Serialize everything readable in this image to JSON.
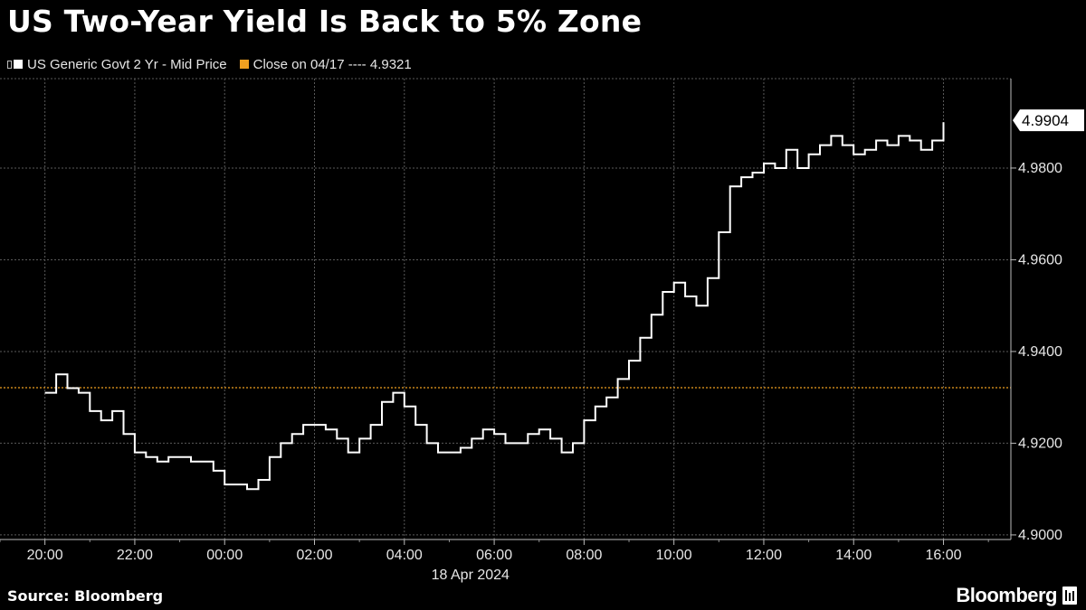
{
  "title": "US Two-Year Yield Is Back to 5% Zone",
  "legend": [
    {
      "label": "US Generic Govt 2 Yr - Mid Price",
      "color": "#ffffff"
    },
    {
      "label": "Close on 04/17 ---- 4.9321",
      "color": "#f0a020"
    }
  ],
  "footer": {
    "source": "Source: Bloomberg",
    "brand": "Bloomberg"
  },
  "colors": {
    "background": "#000000",
    "series": "#ffffff",
    "reference": "#f0a020",
    "grid": "#555555"
  },
  "chart_data": {
    "type": "line",
    "title": "US Two-Year Yield Is Back to 5% Zone",
    "xlabel": "18 Apr 2024",
    "ylabel": "",
    "x_tick_labels": [
      "20:00",
      "22:00",
      "00:00",
      "02:00",
      "04:00",
      "06:00",
      "08:00",
      "10:00",
      "12:00",
      "14:00",
      "16:00"
    ],
    "x_tick_hours": [
      20,
      22,
      24,
      26,
      28,
      30,
      32,
      34,
      36,
      38,
      40
    ],
    "x_range_hours": [
      19.0,
      41.5
    ],
    "y_tick_labels": [
      "4.9000",
      "4.9200",
      "4.9400",
      "4.9600",
      "4.9800"
    ],
    "y_ticks": [
      4.9,
      4.92,
      4.94,
      4.96,
      4.98
    ],
    "ylim": [
      4.899,
      4.9995
    ],
    "reference_line": {
      "label": "Close on 04/17",
      "value": 4.9321
    },
    "last_value": {
      "label": "4.9904",
      "value": 4.9904
    },
    "grid": true,
    "legend_position": "top-left",
    "series": [
      {
        "name": "US Generic Govt 2 Yr - Mid Price",
        "x_hours": [
          20.0,
          20.25,
          20.5,
          20.75,
          21.0,
          21.25,
          21.5,
          21.75,
          22.0,
          22.25,
          22.5,
          22.75,
          23.0,
          23.25,
          23.5,
          23.75,
          24.0,
          24.25,
          24.5,
          24.75,
          25.0,
          25.25,
          25.5,
          25.75,
          26.0,
          26.25,
          26.5,
          26.75,
          27.0,
          27.25,
          27.5,
          27.75,
          28.0,
          28.25,
          28.5,
          28.75,
          29.0,
          29.25,
          29.5,
          29.75,
          30.0,
          30.25,
          30.5,
          30.75,
          31.0,
          31.25,
          31.5,
          31.75,
          32.0,
          32.25,
          32.5,
          32.75,
          33.0,
          33.25,
          33.5,
          33.75,
          34.0,
          34.25,
          34.5,
          34.75,
          35.0,
          35.25,
          35.5,
          35.75,
          36.0,
          36.25,
          36.5,
          36.75,
          37.0,
          37.25,
          37.5,
          37.75,
          38.0,
          38.25,
          38.5,
          38.75,
          39.0,
          39.25,
          39.5,
          39.75,
          40.0
        ],
        "values": [
          4.931,
          4.935,
          4.932,
          4.931,
          4.927,
          4.925,
          4.927,
          4.922,
          4.918,
          4.917,
          4.916,
          4.917,
          4.917,
          4.916,
          4.916,
          4.914,
          4.911,
          4.911,
          4.91,
          4.912,
          4.917,
          4.92,
          4.922,
          4.924,
          4.924,
          4.923,
          4.921,
          4.918,
          4.921,
          4.924,
          4.929,
          4.931,
          4.928,
          4.924,
          4.92,
          4.918,
          4.918,
          4.919,
          4.921,
          4.923,
          4.922,
          4.92,
          4.92,
          4.922,
          4.923,
          4.921,
          4.918,
          4.92,
          4.925,
          4.928,
          4.93,
          4.934,
          4.938,
          4.943,
          4.948,
          4.953,
          4.955,
          4.952,
          4.95,
          4.956,
          4.966,
          4.976,
          4.978,
          4.979,
          4.981,
          4.98,
          4.984,
          4.98,
          4.983,
          4.985,
          4.987,
          4.985,
          4.983,
          4.984,
          4.986,
          4.985,
          4.987,
          4.986,
          4.984,
          4.986,
          4.99
        ]
      }
    ]
  }
}
